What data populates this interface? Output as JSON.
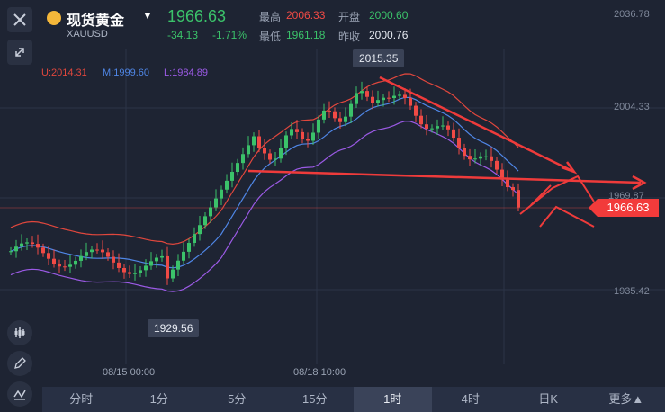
{
  "instrument": {
    "name": "现货黄金",
    "code": "XAUUSD",
    "price": "1966.63",
    "change": "-34.13",
    "change_pct": "-1.71%"
  },
  "stats": {
    "high_label": "最高",
    "high": "2006.33",
    "open_label": "开盘",
    "open": "2000.60",
    "low_label": "最低",
    "low": "1961.18",
    "prev_label": "昨收",
    "prev": "2000.76"
  },
  "bands": {
    "upper": "U:2014.31",
    "middle": "M:1999.60",
    "lower": "L:1984.89"
  },
  "y_axis": {
    "top": "2036.78",
    "t1": "2004.33",
    "t2": "1969.87",
    "t3": "1935.42"
  },
  "callouts": {
    "high": "2015.35",
    "low": "1929.56"
  },
  "price_tag": "1966.63",
  "x_axis": {
    "d1": "08/15 00:00",
    "d2": "08/18 10:00"
  },
  "tabs": [
    "分时",
    "1分",
    "5分",
    "15分",
    "1时",
    "4时",
    "日K",
    "更多▲"
  ],
  "active_tab": "1时",
  "colors": {
    "up": "#3bc26a",
    "down": "#f04a45",
    "upper_band": "#e0473d",
    "middle_band": "#4f86e6",
    "lower_band": "#9b5ae5"
  }
}
